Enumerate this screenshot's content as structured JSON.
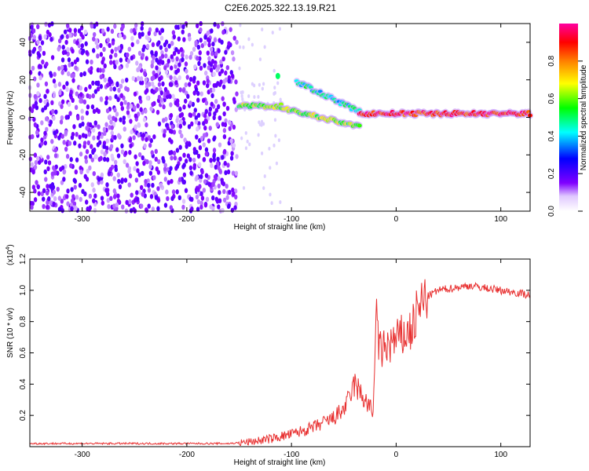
{
  "title": "C2E6.2025.322.13.19.R21",
  "chart_data": [
    {
      "type": "heatmap",
      "xlabel": "Height of straight line (km)",
      "ylabel": "Frequency (Hz)",
      "xlim": [
        -350,
        128
      ],
      "ylim": [
        -50,
        50
      ],
      "xticks": [
        -300,
        -200,
        -100,
        0,
        100
      ],
      "yticks": [
        -40,
        -20,
        0,
        20,
        40
      ],
      "colorbar": {
        "label": "Normalized spectral amplitude",
        "range": [
          0,
          1
        ],
        "ticks": [
          0.0,
          0.2,
          0.4,
          0.6,
          0.8
        ],
        "tick_labels": [
          "0.0",
          "0.2",
          "0.4",
          "0.6",
          "0.8"
        ],
        "colors": [
          "#ffffff",
          "#8000ff",
          "#0000ff",
          "#00ffff",
          "#00ff00",
          "#ffff00",
          "#ff8000",
          "#ff0000",
          "#ff00ff"
        ]
      },
      "regions": [
        {
          "x": [
            -350,
            -152
          ],
          "description_level": "noise",
          "amplitude": [
            0.1,
            0.3
          ]
        },
        {
          "x": [
            -150,
            -110
          ],
          "freq_hz": 6,
          "amplitude": 0.6
        },
        {
          "x": [
            -110,
            -35
          ],
          "freq_hz_start": 5,
          "freq_hz_end": -5,
          "amplitude": 0.6
        },
        {
          "x": [
            -35,
            128
          ],
          "freq_hz": 2,
          "amplitude": 0.9
        }
      ],
      "secondary_trace": {
        "x": [
          -95,
          -35
        ],
        "freq_hz_start": 19,
        "freq_hz_end": 3
      },
      "spot": {
        "x": -113,
        "freq_hz": 22
      }
    },
    {
      "type": "line",
      "xlabel": "Height of straight line (km)",
      "ylabel": "SNR (10 * v/v)",
      "multiplier": "(x10",
      "multiplier_exp": "4",
      "multiplier_close": ")",
      "xlim": [
        -350,
        128
      ],
      "ylim": [
        0,
        1.2
      ],
      "xticks": [
        -300,
        -200,
        -100,
        0,
        100
      ],
      "yticks": [
        0.2,
        0.4,
        0.6,
        0.8,
        1.0,
        1.2
      ],
      "ytick_labels": [
        "0.2",
        "0.4",
        "0.6",
        "0.8",
        "1.0",
        "1.2"
      ],
      "series": [
        {
          "color": "#e83030",
          "x": [
            -350,
            -250,
            -160,
            -140,
            -120,
            -100,
            -80,
            -60,
            -50,
            -45,
            -40,
            -35,
            -30,
            -25,
            -22,
            -20,
            -18,
            -16,
            -15,
            -14,
            -10,
            -5,
            0,
            5,
            10,
            15,
            20,
            25,
            30,
            35,
            40,
            50,
            60,
            70,
            80,
            90,
            100,
            110,
            120,
            128
          ],
          "values": [
            0.02,
            0.02,
            0.02,
            0.03,
            0.05,
            0.08,
            0.12,
            0.18,
            0.24,
            0.3,
            0.4,
            0.35,
            0.3,
            0.25,
            0.2,
            0.75,
            0.85,
            0.6,
            0.62,
            0.6,
            0.64,
            0.66,
            0.68,
            0.7,
            0.72,
            0.75,
            0.85,
            0.92,
            0.96,
            0.98,
            1.0,
            1.01,
            1.02,
            1.03,
            1.02,
            1.01,
            1.0,
            0.99,
            0.98,
            0.97
          ]
        }
      ]
    }
  ]
}
